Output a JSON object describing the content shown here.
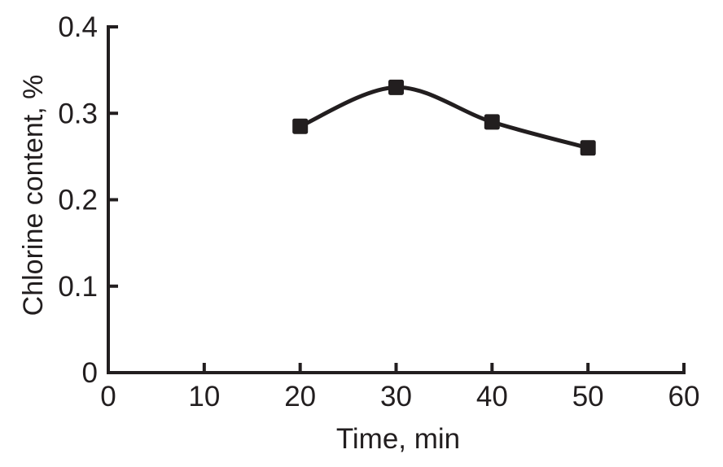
{
  "chart_data": {
    "type": "line",
    "title": "",
    "xlabel": "Time, min",
    "ylabel": "Chlorine content, %",
    "x": [
      20,
      30,
      40,
      50
    ],
    "y": [
      0.285,
      0.33,
      0.29,
      0.26
    ],
    "series": [
      {
        "name": "Chlorine content",
        "x": [
          20,
          30,
          40,
          50
        ],
        "values": [
          0.285,
          0.33,
          0.29,
          0.26
        ]
      }
    ],
    "xlim": [
      0,
      60
    ],
    "ylim": [
      0,
      0.4
    ],
    "x_tick_values": [
      0,
      10,
      20,
      30,
      40,
      50,
      60
    ],
    "x_tick_labels": [
      "0",
      "10",
      "20",
      "30",
      "40",
      "50",
      "60"
    ],
    "y_tick_values": [
      0,
      0.1,
      0.2,
      0.3,
      0.4
    ],
    "y_tick_labels": [
      "0",
      "0.1",
      "0.2",
      "0.3",
      "0.4"
    ],
    "grid": false,
    "legend": "none",
    "marker": "filled-square",
    "line_style": "smooth",
    "colors": {
      "ink": "#221e1f",
      "background": "#ffffff"
    }
  }
}
